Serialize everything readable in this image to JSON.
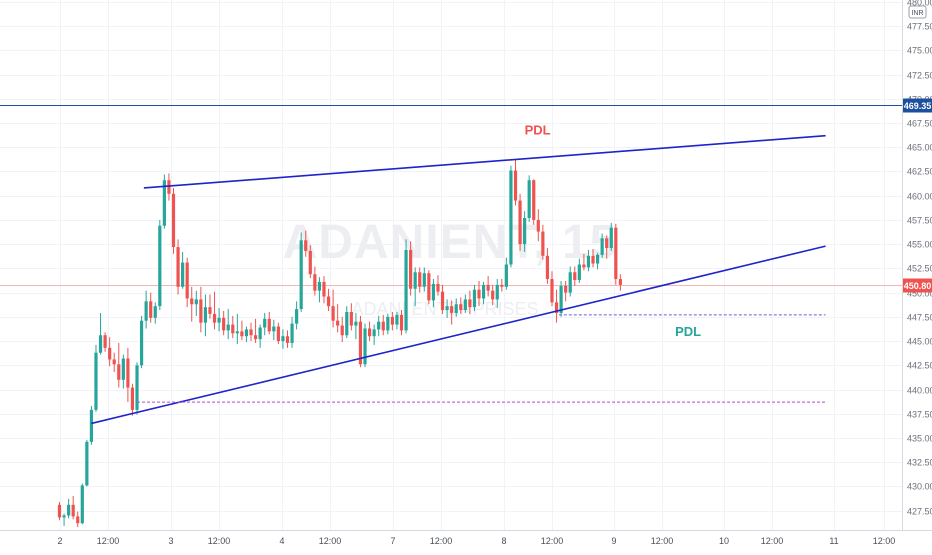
{
  "chart_data": {
    "type": "candlestick",
    "symbol_watermark": "ADANIENT, 15",
    "name_watermark": "ADANI ENTERPRISES",
    "currency": "INR",
    "ylim": [
      425.5,
      480.2
    ],
    "y_ticks": [
      427.5,
      430.0,
      432.5,
      435.0,
      437.5,
      440.0,
      442.5,
      445.0,
      447.5,
      450.0,
      452.5,
      455.0,
      457.5,
      460.0,
      462.5,
      465.0,
      467.5,
      470.0,
      472.5,
      475.0,
      477.5,
      480.0
    ],
    "x_ticks": [
      "2",
      "12:00",
      "3",
      "12:00",
      "4",
      "12:00",
      "7",
      "12:00",
      "8",
      "12:00",
      "9",
      "12:00",
      "10",
      "12:00",
      "11",
      "12:00"
    ],
    "price_badges": [
      {
        "label": "469.35",
        "value": 469.35,
        "color": "#1c4f9c"
      },
      {
        "label": "450.80",
        "value": 450.8,
        "color": "#ef5350"
      }
    ],
    "annotations": [
      {
        "text": "PDL",
        "color": "#ef5350",
        "x_bar": 102,
        "price": 466.3
      },
      {
        "text": "PDL",
        "color": "#26a69a",
        "x_bar": 135,
        "price": 445.5
      }
    ],
    "trendlines": [
      {
        "x1_bar": 18.5,
        "y1": 460.8,
        "x2_bar": 168,
        "y2": 466.2,
        "color": "#1e24c8"
      },
      {
        "x1_bar": 7,
        "y1": 436.5,
        "x2_bar": 168,
        "y2": 454.8,
        "color": "#1e24c8"
      }
    ],
    "dashed_lines": [
      {
        "x1_bar": 109.5,
        "x2_bar": 168,
        "y": 447.7,
        "color": "#6c60d6"
      },
      {
        "x1_bar": 17,
        "x2_bar": 168,
        "y": 438.7,
        "color": "#b04bd0"
      }
    ],
    "candles": [
      [
        428.1,
        428.4,
        426.5,
        426.8
      ],
      [
        426.8,
        427.2,
        425.9,
        427.0
      ],
      [
        427.0,
        428.7,
        426.7,
        428.1
      ],
      [
        428.1,
        429.0,
        426.6,
        426.9
      ],
      [
        426.9,
        427.4,
        425.8,
        426.2
      ],
      [
        426.2,
        430.3,
        426.1,
        430.1
      ],
      [
        430.1,
        434.8,
        430.0,
        434.6
      ],
      [
        434.6,
        438.3,
        434.3,
        437.9
      ],
      [
        437.9,
        444.6,
        437.7,
        443.8
      ],
      [
        443.8,
        447.9,
        443.6,
        445.6
      ],
      [
        445.6,
        445.9,
        443.9,
        444.3
      ],
      [
        444.3,
        445.4,
        442.4,
        443.1
      ],
      [
        443.1,
        443.8,
        441.8,
        442.6
      ],
      [
        442.6,
        444.8,
        440.2,
        441.0
      ],
      [
        441.0,
        443.6,
        440.1,
        443.2
      ],
      [
        443.2,
        444.3,
        438.7,
        440.2
      ],
      [
        440.2,
        440.6,
        437.3,
        437.9
      ],
      [
        437.9,
        442.8,
        437.4,
        442.5
      ],
      [
        442.5,
        447.6,
        442.2,
        447.1
      ],
      [
        447.1,
        450.2,
        446.3,
        449.1
      ],
      [
        449.1,
        450.0,
        446.9,
        447.4
      ],
      [
        447.4,
        449.0,
        446.8,
        448.6
      ],
      [
        448.6,
        457.5,
        448.2,
        456.9
      ],
      [
        456.9,
        462.2,
        456.6,
        461.6
      ],
      [
        461.6,
        462.3,
        459.5,
        460.2
      ],
      [
        460.2,
        460.8,
        454.0,
        454.7
      ],
      [
        454.7,
        455.5,
        449.8,
        450.6
      ],
      [
        450.6,
        454.2,
        450.4,
        453.1
      ],
      [
        453.1,
        453.6,
        448.5,
        449.4
      ],
      [
        449.4,
        450.6,
        447.0,
        448.8
      ],
      [
        448.8,
        450.2,
        447.6,
        449.3
      ],
      [
        449.3,
        450.6,
        445.9,
        446.9
      ],
      [
        446.9,
        449.8,
        445.5,
        448.5
      ],
      [
        448.5,
        449.8,
        447.3,
        447.8
      ],
      [
        447.8,
        450.1,
        446.2,
        446.9
      ],
      [
        446.9,
        448.4,
        446.0,
        447.4
      ],
      [
        447.4,
        448.1,
        445.6,
        446.1
      ],
      [
        446.1,
        448.3,
        445.2,
        446.7
      ],
      [
        446.7,
        447.6,
        445.3,
        445.8
      ],
      [
        445.8,
        447.8,
        444.7,
        446.0
      ],
      [
        446.0,
        447.1,
        445.1,
        445.5
      ],
      [
        445.5,
        446.5,
        444.9,
        446.2
      ],
      [
        446.2,
        446.9,
        445.0,
        445.6
      ],
      [
        445.6,
        447.3,
        444.8,
        445.2
      ],
      [
        445.2,
        446.7,
        444.3,
        446.4
      ],
      [
        446.4,
        447.9,
        445.6,
        447.3
      ],
      [
        447.3,
        448.0,
        445.7,
        446.0
      ],
      [
        446.0,
        447.2,
        445.1,
        446.5
      ],
      [
        446.5,
        446.9,
        444.7,
        445.0
      ],
      [
        445.0,
        446.2,
        444.2,
        445.5
      ],
      [
        445.5,
        446.1,
        444.3,
        444.8
      ],
      [
        444.8,
        447.5,
        444.3,
        446.8
      ],
      [
        446.8,
        449.1,
        446.2,
        448.3
      ],
      [
        448.3,
        456.2,
        448.0,
        455.4
      ],
      [
        455.4,
        456.4,
        453.7,
        454.3
      ],
      [
        454.3,
        454.9,
        451.5,
        451.9
      ],
      [
        451.9,
        452.7,
        449.7,
        450.2
      ],
      [
        450.2,
        451.6,
        449.0,
        451.1
      ],
      [
        451.1,
        451.7,
        448.9,
        449.6
      ],
      [
        449.6,
        450.4,
        448.1,
        448.6
      ],
      [
        448.6,
        450.3,
        446.4,
        447.1
      ],
      [
        447.1,
        448.8,
        445.9,
        446.6
      ],
      [
        446.6,
        447.5,
        444.9,
        445.6
      ],
      [
        445.6,
        448.6,
        445.3,
        448.0
      ],
      [
        448.0,
        448.9,
        446.1,
        446.6
      ],
      [
        446.6,
        447.9,
        445.2,
        447.0
      ],
      [
        447.0,
        447.6,
        442.3,
        442.6
      ],
      [
        442.6,
        446.8,
        442.3,
        446.3
      ],
      [
        446.3,
        447.0,
        445.0,
        445.5
      ],
      [
        445.5,
        446.7,
        444.6,
        446.2
      ],
      [
        446.2,
        447.6,
        445.5,
        447.0
      ],
      [
        447.0,
        447.7,
        445.6,
        446.1
      ],
      [
        446.1,
        447.8,
        445.7,
        447.5
      ],
      [
        447.5,
        448.0,
        446.1,
        446.7
      ],
      [
        446.7,
        448.0,
        446.2,
        447.7
      ],
      [
        447.7,
        448.2,
        445.6,
        446.1
      ],
      [
        446.1,
        455.5,
        445.8,
        454.4
      ],
      [
        454.4,
        455.3,
        449.7,
        450.4
      ],
      [
        450.4,
        452.6,
        448.6,
        452.1
      ],
      [
        452.1,
        452.6,
        450.0,
        450.6
      ],
      [
        450.6,
        452.6,
        450.1,
        452.0
      ],
      [
        452.0,
        452.3,
        448.8,
        449.2
      ],
      [
        449.2,
        451.4,
        448.5,
        450.9
      ],
      [
        450.9,
        451.8,
        449.7,
        450.1
      ],
      [
        450.1,
        450.8,
        447.8,
        448.2
      ],
      [
        448.2,
        449.3,
        447.4,
        448.6
      ],
      [
        448.6,
        449.2,
        446.7,
        447.9
      ],
      [
        447.9,
        449.4,
        447.5,
        448.8
      ],
      [
        448.8,
        449.5,
        447.8,
        448.2
      ],
      [
        448.2,
        449.8,
        447.9,
        449.3
      ],
      [
        449.3,
        450.2,
        447.8,
        448.5
      ],
      [
        448.5,
        450.8,
        448.1,
        450.3
      ],
      [
        450.3,
        451.2,
        448.6,
        449.4
      ],
      [
        449.4,
        451.1,
        448.8,
        450.8
      ],
      [
        450.8,
        451.7,
        449.6,
        450.2
      ],
      [
        450.2,
        450.8,
        448.7,
        449.3
      ],
      [
        449.3,
        451.4,
        448.4,
        450.8
      ],
      [
        450.8,
        451.4,
        450.1,
        450.6
      ],
      [
        450.6,
        453.6,
        450.3,
        452.9
      ],
      [
        452.9,
        463.1,
        452.6,
        462.6
      ],
      [
        462.6,
        463.8,
        459.0,
        459.5
      ],
      [
        459.5,
        460.2,
        454.3,
        455.0
      ],
      [
        455.0,
        458.4,
        454.2,
        457.7
      ],
      [
        457.7,
        462.1,
        457.3,
        461.6
      ],
      [
        461.6,
        461.7,
        457.0,
        457.5
      ],
      [
        457.5,
        458.6,
        455.3,
        456.3
      ],
      [
        456.3,
        457.0,
        453.4,
        453.8
      ],
      [
        453.8,
        454.6,
        450.9,
        451.4
      ],
      [
        451.4,
        452.2,
        448.6,
        449.0
      ],
      [
        449.0,
        450.3,
        446.9,
        447.9
      ],
      [
        447.9,
        451.2,
        447.5,
        450.7
      ],
      [
        450.7,
        451.2,
        449.1,
        450.0
      ],
      [
        450.0,
        452.7,
        449.6,
        452.1
      ],
      [
        452.1,
        452.7,
        450.7,
        451.3
      ],
      [
        451.3,
        453.5,
        451.0,
        452.9
      ],
      [
        452.9,
        454.0,
        452.3,
        452.6
      ],
      [
        452.6,
        454.4,
        452.2,
        453.8
      ],
      [
        453.8,
        454.5,
        452.6,
        453.0
      ],
      [
        453.0,
        454.1,
        452.4,
        453.9
      ],
      [
        453.9,
        456.1,
        453.6,
        455.6
      ],
      [
        455.6,
        455.9,
        453.5,
        454.6
      ],
      [
        454.6,
        457.2,
        454.3,
        456.7
      ],
      [
        456.7,
        457.1,
        450.8,
        451.4
      ],
      [
        451.4,
        451.9,
        450.2,
        450.8
      ]
    ]
  }
}
